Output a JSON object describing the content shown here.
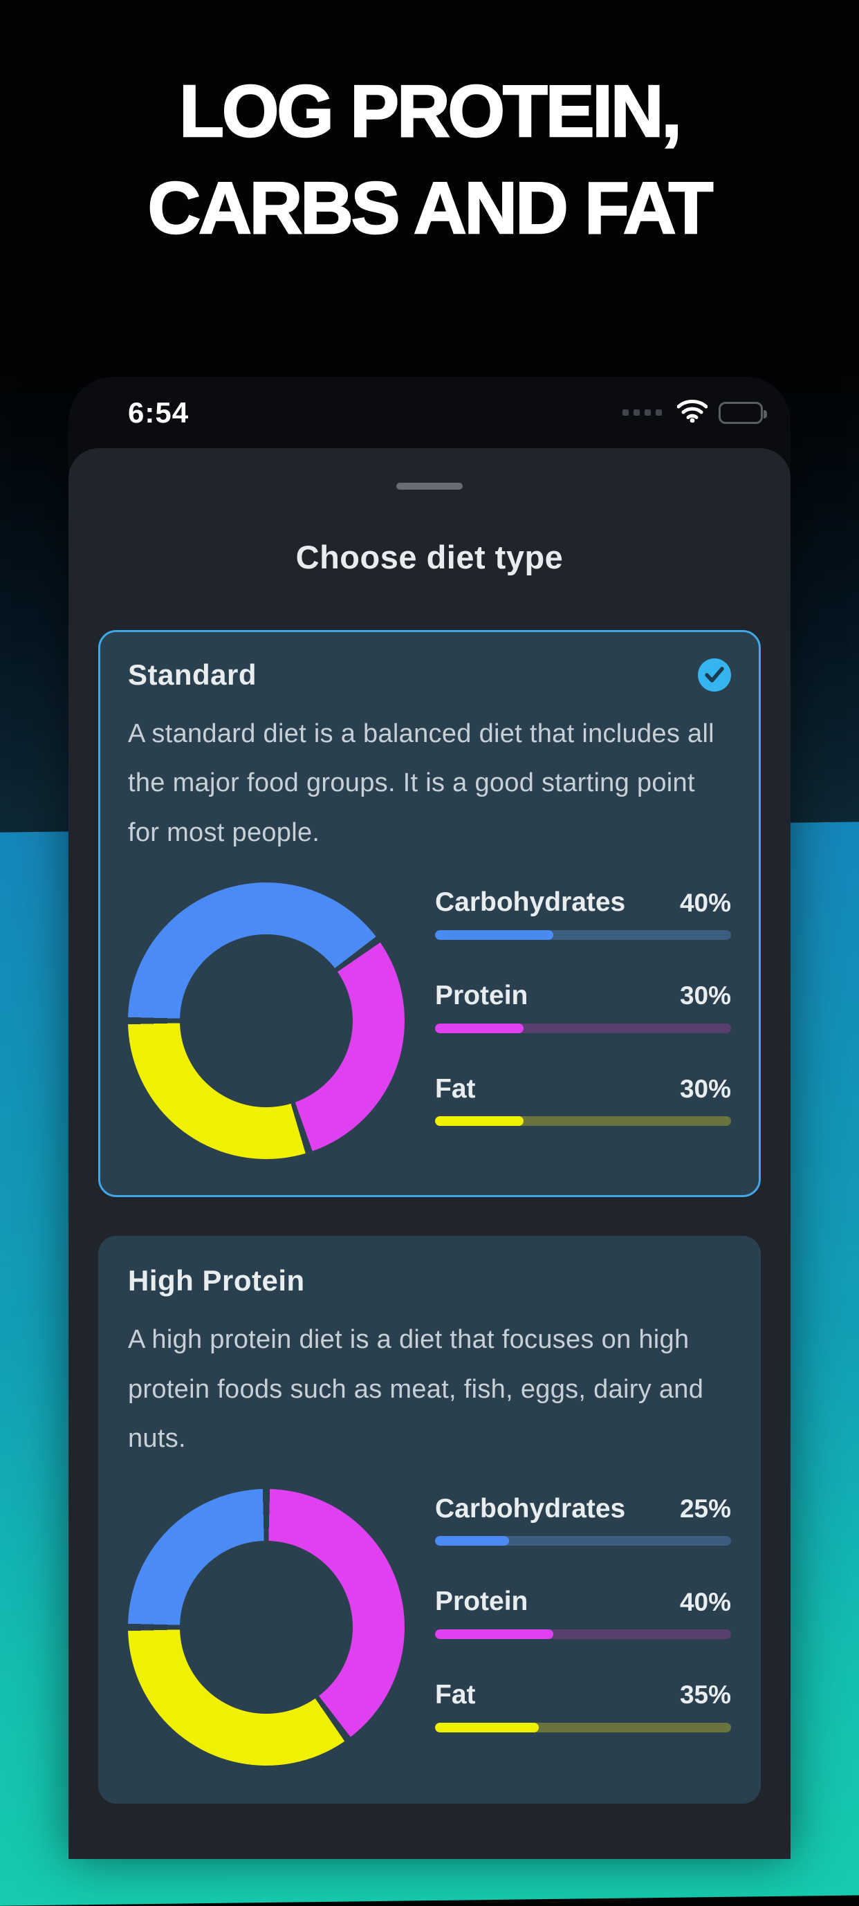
{
  "page": {
    "headline": [
      "LOG PROTEIN,",
      "CARBS AND FAT"
    ]
  },
  "statusbar": {
    "time": "6:54"
  },
  "sheet": {
    "title": "Choose diet type"
  },
  "cards": [
    {
      "title": "Standard",
      "selected": true,
      "description": "A standard diet is a balanced diet that includes all the major food groups. It is a good starting point for most people.",
      "macros": [
        {
          "label": "Carbohydrates",
          "pct": 40,
          "pct_label": "40%",
          "fill": "#4A8BF6",
          "track": "#3C5C80"
        },
        {
          "label": "Protein",
          "pct": 30,
          "pct_label": "30%",
          "fill": "#DF40F0",
          "track": "#57406F"
        },
        {
          "label": "Fat",
          "pct": 30,
          "pct_label": "30%",
          "fill": "#F0F101",
          "track": "#6A743E"
        }
      ]
    },
    {
      "title": "High Protein",
      "selected": false,
      "description": "A high protein diet is a diet that focuses on high protein foods such as meat, fish, eggs, dairy and nuts.",
      "macros": [
        {
          "label": "Carbohydrates",
          "pct": 25,
          "pct_label": "25%",
          "fill": "#4A8BF6",
          "track": "#3C5C80"
        },
        {
          "label": "Protein",
          "pct": 40,
          "pct_label": "40%",
          "fill": "#DF40F0",
          "track": "#57406F"
        },
        {
          "label": "Fat",
          "pct": 35,
          "pct_label": "35%",
          "fill": "#F0F101",
          "track": "#6A743E"
        }
      ]
    }
  ],
  "chart_data": [
    {
      "type": "pie",
      "donut": true,
      "title": "Standard diet macro split",
      "labels": [
        "Carbohydrates",
        "Protein",
        "Fat"
      ],
      "values": [
        40,
        30,
        30
      ],
      "colors": [
        "#4A8BF6",
        "#DF40F0",
        "#F0F101"
      ],
      "start_angle_deg": 270,
      "direction": "clockwise"
    },
    {
      "type": "pie",
      "donut": true,
      "title": "High Protein diet macro split",
      "labels": [
        "Carbohydrates",
        "Protein",
        "Fat"
      ],
      "values": [
        25,
        40,
        35
      ],
      "colors": [
        "#4A8BF6",
        "#DF40F0",
        "#F0F101"
      ],
      "start_angle_deg": 270,
      "direction": "clockwise"
    }
  ],
  "colors": {
    "accent_border_blue": "#41A7E6",
    "check_circle_blue": "#35B5F0",
    "card_background": "#2B404E",
    "sheet_background": "#20242B",
    "backdrop_cyan_top": "#1586B9",
    "backdrop_cyan_bottom": "#16CBAE"
  }
}
